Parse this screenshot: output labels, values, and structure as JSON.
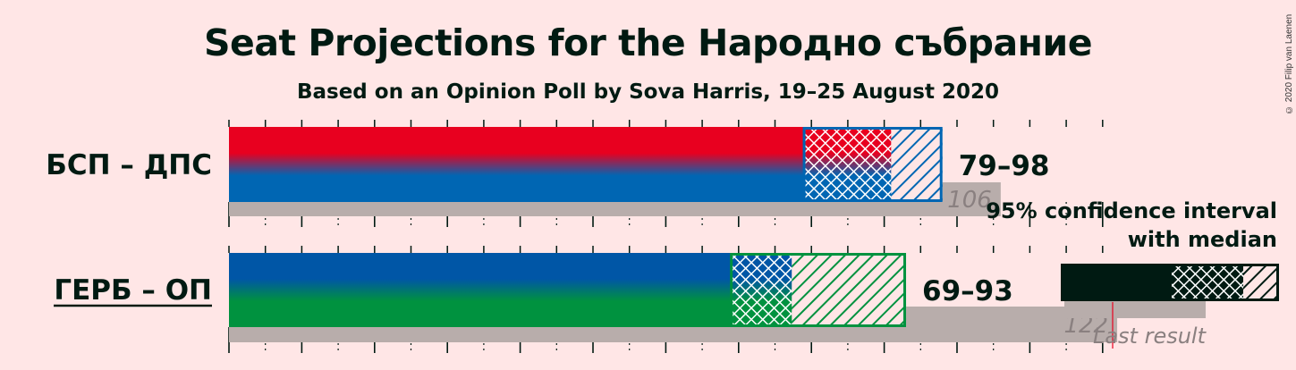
{
  "title": "Seat Projections for the Народно събрание",
  "subtitle": "Based on an Opinion Poll by Sova Harris, 19–25 August 2020",
  "copyright": "© 2020 Filip van Laenen",
  "legend": {
    "line1": "95% confidence interval",
    "line2": "with median",
    "last_result": "Last result"
  },
  "colors": {
    "background": "#ffe6e6",
    "text": "#001a12",
    "last_result_bar": "#b8adab",
    "bsp_top": "#e8001f",
    "bsp_bottom": "#0066b3",
    "gerb_top": "#0056a6",
    "gerb_bottom": "#00923f",
    "legend_dark": "#001a12"
  },
  "chart_data": {
    "type": "bar",
    "categories": [
      "БСП – ДПС",
      "ГЕРБ – ОП"
    ],
    "series": [
      {
        "name": "95% confidence interval",
        "low": [
          79,
          69
        ],
        "high": [
          98,
          93
        ]
      },
      {
        "name": "Last result",
        "values": [
          106,
          122
        ]
      }
    ],
    "range_labels": [
      "79–98",
      "69–93"
    ],
    "last_labels": [
      "106",
      "122"
    ],
    "xlim": [
      0,
      122
    ],
    "grid": true
  }
}
